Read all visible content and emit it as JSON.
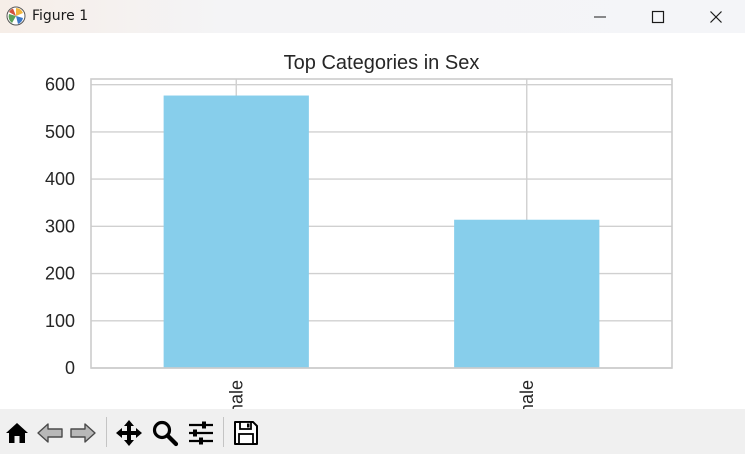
{
  "window": {
    "title": "Figure 1",
    "icon": "matplotlib-icon",
    "controls": [
      "minimize-icon",
      "maximize-icon",
      "close-icon"
    ]
  },
  "toolbar": {
    "tools": [
      "home-icon",
      "back-arrow-icon",
      "forward-arrow-icon",
      "pan-icon",
      "zoom-icon",
      "configure-subplots-icon",
      "save-icon"
    ]
  },
  "colors": {
    "bar": "#87ceeb",
    "grid": "#d0d0d0",
    "axes_edge": "#cccccc",
    "text": "#262626"
  },
  "chart_data": {
    "type": "bar",
    "title": "Top Categories in Sex",
    "categories": [
      "male",
      "female"
    ],
    "visible_tick_labels": [
      "ale",
      "ale"
    ],
    "values": [
      577,
      314
    ],
    "ylim": [
      0,
      612
    ],
    "yticks": [
      0,
      100,
      200,
      300,
      400,
      500,
      600
    ],
    "xlabel": "",
    "ylabel": "",
    "grid": true
  }
}
